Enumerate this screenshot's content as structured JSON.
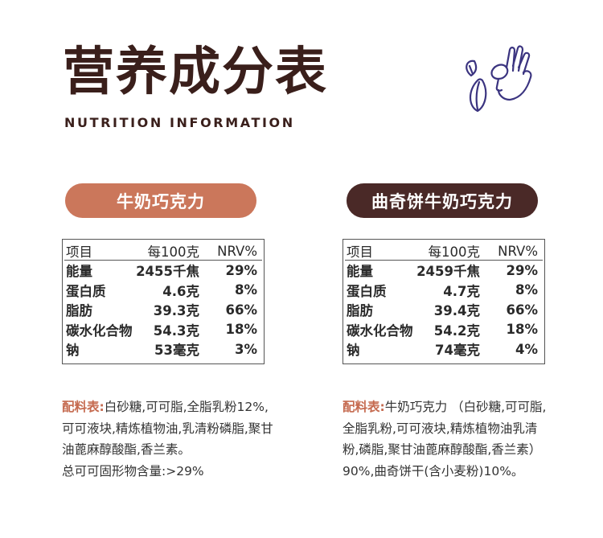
{
  "header": {
    "title": "营养成分表",
    "subtitle": "NUTRITION INFORMATION",
    "icon": "cocoa-hand-icon"
  },
  "products": [
    {
      "name": "牛奶巧克力",
      "color": "#cb775b",
      "table": {
        "headers": [
          "项目",
          "每100克",
          "NRV%"
        ],
        "rows": [
          [
            "能量",
            "2455千焦",
            "29%"
          ],
          [
            "蛋白质",
            "4.6克",
            "8%"
          ],
          [
            "脂肪",
            "39.3克",
            "66%"
          ],
          [
            "碳水化合物",
            "54.3克",
            "18%"
          ],
          [
            "钠",
            "53毫克",
            "3%"
          ]
        ]
      },
      "ingredients_label": "配料表:",
      "ingredients_text": "白砂糖,可可脂,全脂乳粉12%,可可液块,精炼植物油,乳清粉磷脂,聚甘油蓖麻醇酸酯,香兰素。",
      "cocoa_solids": "总可可固形物含量:>29%"
    },
    {
      "name": "曲奇饼牛奶巧克力",
      "color": "#4a2927",
      "table": {
        "headers": [
          "项目",
          "每100克",
          "NRV%"
        ],
        "rows": [
          [
            "能量",
            "2459千焦",
            "29%"
          ],
          [
            "蛋白质",
            "4.7克",
            "8%"
          ],
          [
            "脂肪",
            "39.4克",
            "66%"
          ],
          [
            "碳水化合物",
            "54.2克",
            "18%"
          ],
          [
            "钠",
            "74毫克",
            "4%"
          ]
        ]
      },
      "ingredients_label": "配料表:",
      "ingredients_text": "牛奶巧克力 （白砂糖,可可脂,全脂乳粉,可可液块,精炼植物油乳清粉,磷脂,聚甘油蓖麻醇酸酯,香兰素） 90%,曲奇饼干(含小麦粉)10%。"
    }
  ]
}
